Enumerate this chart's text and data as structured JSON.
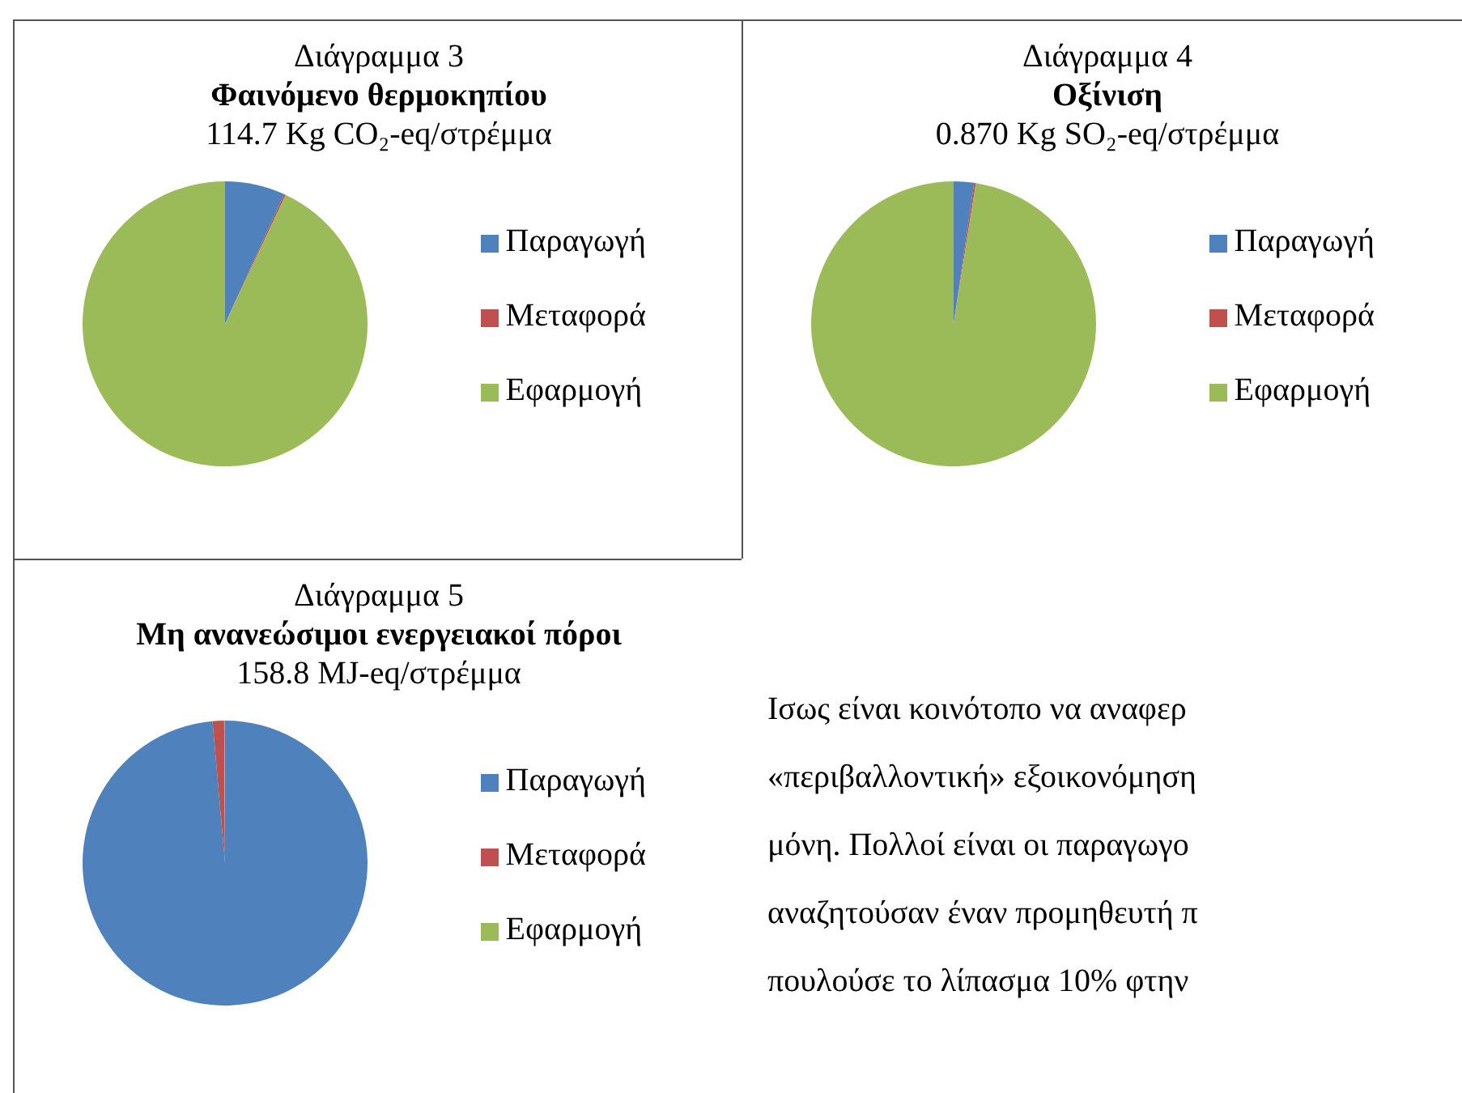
{
  "chart_data": [
    {
      "type": "pie",
      "annotations": [
        "Διάγραμμα 3"
      ],
      "title": "Φαινόμενο θερμοκηπίου",
      "subtitle": "114.7 Kg CO₂-eq/στρέμμα",
      "categories": [
        "Παραγωγή",
        "Μεταφορά",
        "Εφαρμογή"
      ],
      "values": [
        6.8,
        0.2,
        93
      ],
      "colors": [
        "#4f81bd",
        "#c0504d",
        "#9bbb59"
      ],
      "legend": "right"
    },
    {
      "type": "pie",
      "annotations": [
        "Διάγραμμα 4"
      ],
      "title": "Οξίνιση",
      "subtitle": "0.870 Kg SO₂-eq/στρέμμα",
      "categories": [
        "Παραγωγή",
        "Μεταφορά",
        "Εφαρμογή"
      ],
      "values": [
        2.3,
        0.2,
        97.5
      ],
      "colors": [
        "#4f81bd",
        "#c0504d",
        "#9bbb59"
      ],
      "legend": "right"
    },
    {
      "type": "pie",
      "annotations": [
        "Διάγραμμα 5"
      ],
      "title": "Μη ανανεώσιμοι ενεργειακοί πόροι",
      "subtitle": "158.8 MJ-eq/στρέμμα",
      "categories": [
        "Παραγωγή",
        "Μεταφορά",
        "Εφαρμογή"
      ],
      "values": [
        98.6,
        1.3,
        0.1
      ],
      "colors": [
        "#4f81bd",
        "#c0504d",
        "#9bbb59"
      ],
      "legend": "right"
    },
    {
      "type": "other",
      "annotations": [
        "Ισως είναι κοινότοπο να αναφερ",
        "«περιβαλλοντική» εξοικονόμηση",
        "μόνη. Πολλοί είναι οι παραγωγο",
        "αναζητούσαν έναν προμηθευτή π",
        "πουλούσε το λίπασμα 10% φτην"
      ]
    }
  ]
}
